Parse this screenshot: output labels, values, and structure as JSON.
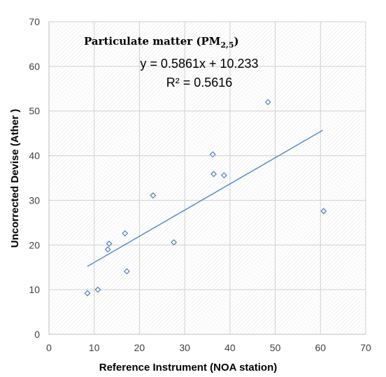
{
  "chart_data": {
    "type": "scatter",
    "title": "Particulate matter (PM",
    "title_subscript": "2,5",
    "title_close": ")",
    "xlabel": "Reference Instrument (NOA station)",
    "ylabel": "Uncorrected Devise (Ather )",
    "xlim": [
      0,
      70
    ],
    "ylim": [
      0,
      70
    ],
    "xticks": [
      "0",
      "10",
      "20",
      "30",
      "40",
      "50",
      "60",
      "70"
    ],
    "yticks": [
      "0",
      "10",
      "20",
      "30",
      "40",
      "50",
      "60",
      "70"
    ],
    "grid": true,
    "trendline_equation": "y = 0.5861x + 10.233",
    "r_squared": "R² = 0.5616",
    "trendline": {
      "slope": 0.5861,
      "intercept": 10.233,
      "x_range": [
        8.5,
        60.5
      ]
    },
    "points": [
      {
        "x": 8.5,
        "y": 9.2
      },
      {
        "x": 10.8,
        "y": 10.0
      },
      {
        "x": 13.0,
        "y": 19.0
      },
      {
        "x": 13.3,
        "y": 20.3
      },
      {
        "x": 16.8,
        "y": 22.6
      },
      {
        "x": 17.2,
        "y": 14.1
      },
      {
        "x": 23.0,
        "y": 31.1
      },
      {
        "x": 27.6,
        "y": 20.6
      },
      {
        "x": 36.2,
        "y": 40.3
      },
      {
        "x": 36.4,
        "y": 35.9
      },
      {
        "x": 38.7,
        "y": 35.6
      },
      {
        "x": 48.4,
        "y": 52.0
      },
      {
        "x": 60.7,
        "y": 27.6
      }
    ],
    "colors": {
      "marker": "#4f7fc0",
      "trendline": "#5b8bc9",
      "grid": "#d0d0d0"
    }
  }
}
